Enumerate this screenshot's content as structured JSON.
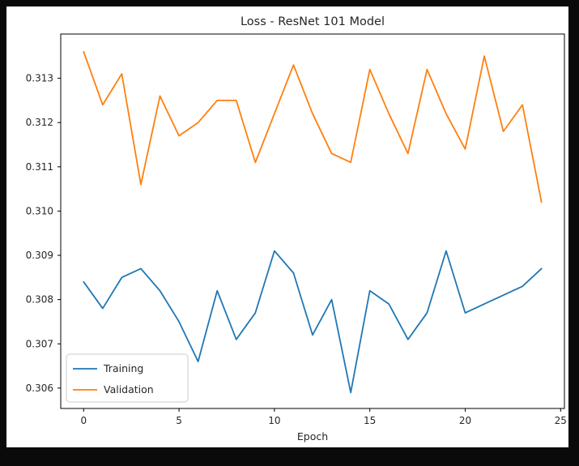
{
  "chart_data": {
    "type": "line",
    "title": "Loss - ResNet 101 Model",
    "xlabel": "Epoch",
    "ylabel": "",
    "x": [
      0,
      1,
      2,
      3,
      4,
      5,
      6,
      7,
      8,
      9,
      10,
      11,
      12,
      13,
      14,
      15,
      16,
      17,
      18,
      19,
      20,
      21,
      22,
      23,
      24
    ],
    "series": [
      {
        "name": "Training",
        "color": "#1f77b4",
        "values": [
          0.3084,
          0.3078,
          0.3085,
          0.3087,
          0.3082,
          0.3075,
          0.3066,
          0.3082,
          0.3071,
          0.3077,
          0.3091,
          0.3086,
          0.3072,
          0.308,
          0.3059,
          0.3082,
          0.3079,
          0.3071,
          0.3077,
          0.3091,
          0.3077,
          0.3079,
          0.3081,
          0.3083,
          0.3087
        ]
      },
      {
        "name": "Validation",
        "color": "#ff7f0e",
        "values": [
          0.3136,
          0.3124,
          0.3131,
          0.3106,
          0.3126,
          0.3117,
          0.312,
          0.3125,
          0.3125,
          0.3111,
          0.3122,
          0.3133,
          0.3122,
          0.3113,
          0.3111,
          0.3132,
          0.3122,
          0.3113,
          0.3132,
          0.3122,
          0.3114,
          0.3135,
          0.3118,
          0.3124,
          0.3102
        ]
      }
    ],
    "xlim": [
      -1.2,
      25.2
    ],
    "ylim": [
      0.30554,
      0.314
    ],
    "xticks": [
      0,
      5,
      10,
      15,
      20,
      25
    ],
    "yticks": [
      0.306,
      0.307,
      0.308,
      0.309,
      0.31,
      0.311,
      0.312,
      0.313
    ],
    "grid": false,
    "legend_position": "lower left",
    "spine_color": "#000000",
    "figure_background": "#ffffff",
    "outer_background": "#0a0a0a"
  }
}
